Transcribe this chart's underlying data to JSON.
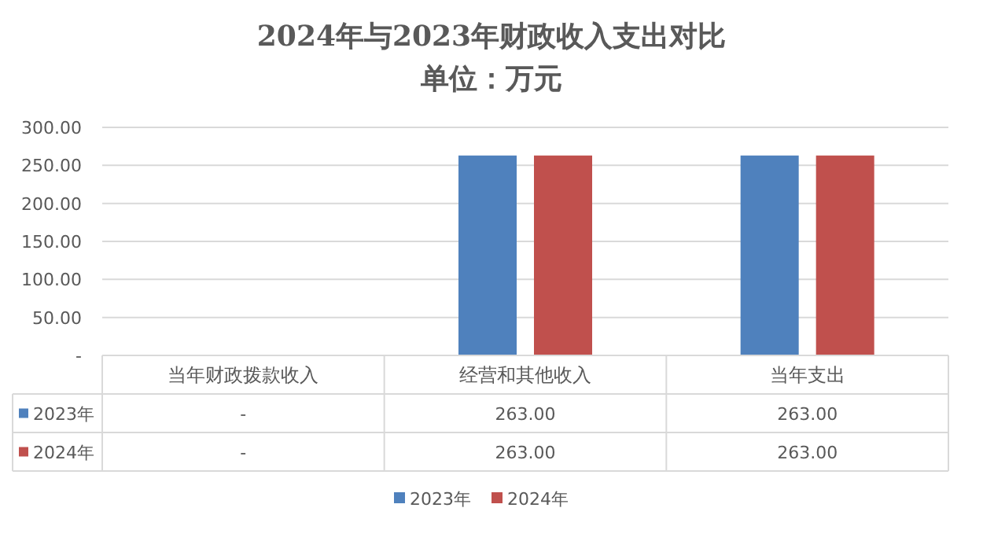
{
  "chart_data": {
    "type": "bar",
    "title": "2024年与2023年财政收入支出对比",
    "subtitle": "单位：万元",
    "categories": [
      "当年财政拨款收入",
      "经营和其他收入",
      "当年支出"
    ],
    "series": [
      {
        "name": "2023年",
        "color": "#4f81bd",
        "values": [
          0,
          263,
          263
        ],
        "value_labels": [
          "-",
          "263.00",
          "263.00"
        ]
      },
      {
        "name": "2024年",
        "color": "#c0504d",
        "values": [
          0,
          263,
          263
        ],
        "value_labels": [
          "-",
          "263.00",
          "263.00"
        ]
      }
    ],
    "ylim": [
      0,
      300
    ],
    "yticks": [
      {
        "value": 0,
        "label": "-"
      },
      {
        "value": 50,
        "label": "50.00"
      },
      {
        "value": 100,
        "label": "100.00"
      },
      {
        "value": 150,
        "label": "150.00"
      },
      {
        "value": 200,
        "label": "200.00"
      },
      {
        "value": 250,
        "label": "250.00"
      },
      {
        "value": 300,
        "label": "300.00"
      }
    ],
    "grid": "y",
    "legend": "bottom"
  }
}
